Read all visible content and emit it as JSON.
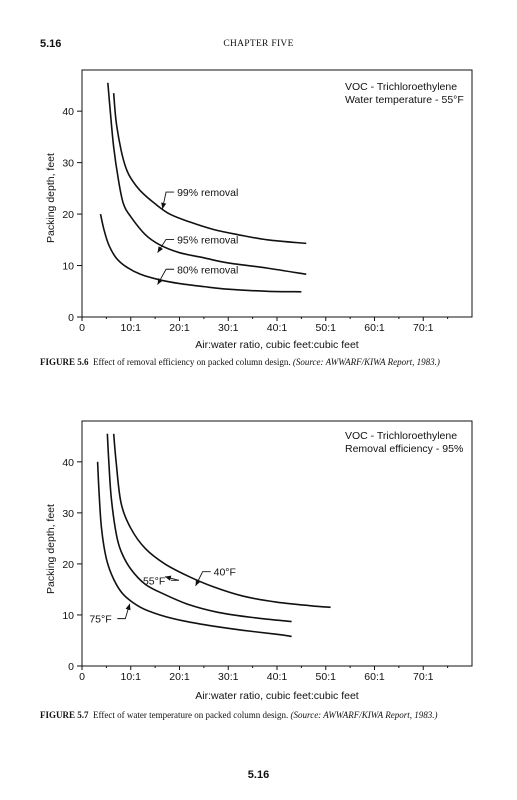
{
  "page": {
    "header_number": "5.16",
    "header_title": "CHAPTER FIVE",
    "footer_number": "5.16"
  },
  "chart_data": [
    {
      "type": "line",
      "xlabel": "Air:water ratio, cubic feet:cubic feet",
      "ylabel": "Packing depth, feet",
      "xlim": [
        0,
        80
      ],
      "ylim": [
        0,
        48
      ],
      "x_tick_labels": [
        "0",
        "10:1",
        "20:1",
        "30:1",
        "40:1",
        "50:1",
        "60:1",
        "70:1"
      ],
      "x_tick_values": [
        0,
        10,
        20,
        30,
        40,
        50,
        60,
        70
      ],
      "y_tick_labels": [
        "0",
        "10",
        "20",
        "30",
        "40"
      ],
      "y_tick_values": [
        0,
        10,
        20,
        30,
        40
      ],
      "annotation_lines": [
        "VOC - Trichloroethylene",
        "Water temperature - 55°F"
      ],
      "series": [
        {
          "name": "99% removal",
          "points": [
            [
              6.5,
              43.5
            ],
            [
              7,
              38
            ],
            [
              8,
              32.5
            ],
            [
              9,
              29
            ],
            [
              10,
              27
            ],
            [
              12,
              24.5
            ],
            [
              15,
              22
            ],
            [
              18,
              20
            ],
            [
              22,
              18.5
            ],
            [
              27,
              17
            ],
            [
              32,
              16
            ],
            [
              38,
              15
            ],
            [
              46,
              14.3
            ]
          ]
        },
        {
          "name": "95% removal",
          "points": [
            [
              5.3,
              45.5
            ],
            [
              5.8,
              40
            ],
            [
              6.5,
              33
            ],
            [
              7.5,
              26.5
            ],
            [
              8.5,
              22
            ],
            [
              10,
              19.5
            ],
            [
              13,
              16
            ],
            [
              16,
              14
            ],
            [
              20,
              12.5
            ],
            [
              25,
              11.5
            ],
            [
              30,
              10.5
            ],
            [
              38,
              9.5
            ],
            [
              46,
              8.3
            ]
          ]
        },
        {
          "name": "80% removal",
          "points": [
            [
              3.8,
              20
            ],
            [
              4.5,
              17
            ],
            [
              5.5,
              14
            ],
            [
              7,
              11.5
            ],
            [
              9,
              9.8
            ],
            [
              12,
              8.3
            ],
            [
              16,
              7.2
            ],
            [
              20,
              6.5
            ],
            [
              25,
              5.9
            ],
            [
              30,
              5.4
            ],
            [
              38,
              5
            ],
            [
              45,
              4.9
            ]
          ]
        }
      ],
      "callouts": [
        {
          "label": "99% removal",
          "text_at": [
            19.5,
            23.5
          ],
          "arrow_to": [
            16.5,
            21
          ]
        },
        {
          "label": "95% removal",
          "text_at": [
            19.5,
            14.3
          ],
          "arrow_to": [
            15.5,
            12.5
          ]
        },
        {
          "label": "80% removal",
          "text_at": [
            19.5,
            8.5
          ],
          "arrow_to": [
            15.5,
            6.3
          ]
        }
      ]
    },
    {
      "type": "line",
      "xlabel": "Air:water ratio, cubic feet:cubic feet",
      "ylabel": "Packing depth, feet",
      "xlim": [
        0,
        80
      ],
      "ylim": [
        0,
        48
      ],
      "x_tick_labels": [
        "0",
        "10:1",
        "20:1",
        "30:1",
        "40:1",
        "50:1",
        "60:1",
        "70:1"
      ],
      "x_tick_values": [
        0,
        10,
        20,
        30,
        40,
        50,
        60,
        70
      ],
      "y_tick_labels": [
        "0",
        "10",
        "20",
        "30",
        "40"
      ],
      "y_tick_values": [
        0,
        10,
        20,
        30,
        40
      ],
      "annotation_lines": [
        "VOC - Trichloroethylene",
        "Removal efficiency - 95%"
      ],
      "series": [
        {
          "name": "40°F",
          "points": [
            [
              6.5,
              45.5
            ],
            [
              7,
              40
            ],
            [
              8,
              32
            ],
            [
              10,
              27
            ],
            [
              13,
              23
            ],
            [
              17,
              20
            ],
            [
              22,
              17.5
            ],
            [
              27,
              15.5
            ],
            [
              33,
              13.7
            ],
            [
              40,
              12.5
            ],
            [
              47,
              11.8
            ],
            [
              51,
              11.5
            ]
          ]
        },
        {
          "name": "55°F",
          "points": [
            [
              5.2,
              45.5
            ],
            [
              5.5,
              40
            ],
            [
              6,
              33
            ],
            [
              7,
              26
            ],
            [
              8,
              22.5
            ],
            [
              10,
              19
            ],
            [
              13,
              16
            ],
            [
              17,
              14
            ],
            [
              22,
              12
            ],
            [
              28,
              10.5
            ],
            [
              35,
              9.5
            ],
            [
              43,
              8.7
            ]
          ]
        },
        {
          "name": "75°F",
          "points": [
            [
              3.2,
              40
            ],
            [
              3.5,
              34
            ],
            [
              4,
              27
            ],
            [
              5,
              21
            ],
            [
              6.5,
              17
            ],
            [
              8.5,
              14
            ],
            [
              12,
              11.5
            ],
            [
              16,
              10
            ],
            [
              21,
              8.8
            ],
            [
              27,
              7.8
            ],
            [
              33,
              7
            ],
            [
              40,
              6.2
            ],
            [
              43,
              5.8
            ]
          ]
        }
      ],
      "callouts": [
        {
          "label": "40°F",
          "text_at": [
            27,
            17.7
          ],
          "arrow_to": [
            23.3,
            15.7
          ]
        },
        {
          "label": "55°F",
          "text_at": [
            12.5,
            16.0
          ],
          "arrow_to": [
            17,
            17.5
          ]
        },
        {
          "label": "75°F",
          "text_at": [
            1.5,
            8.5
          ],
          "arrow_to": [
            9.8,
            12.2
          ]
        }
      ]
    }
  ],
  "captions": [
    {
      "fig": "FIGURE 5.6",
      "text": "Effect of removal efficiency on packed column design.",
      "source": "(Source: AWWARF/KIWA Report, 1983.)"
    },
    {
      "fig": "FIGURE 5.7",
      "text": "Effect of water temperature on packed column design.",
      "source": "(Source: AWWARF/KIWA Report, 1983.)"
    }
  ]
}
